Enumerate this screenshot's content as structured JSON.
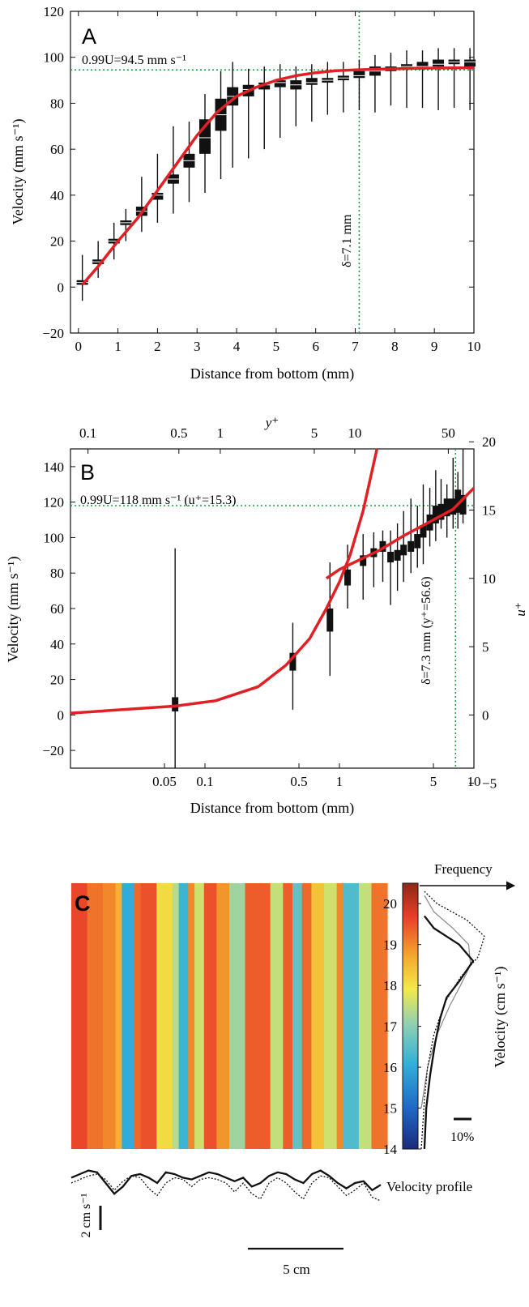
{
  "chart_data": [
    {
      "id": "A",
      "type": "line",
      "panel_label": "A",
      "xlabel": "Distance from bottom (mm)",
      "ylabel": "Velocity (mm s⁻¹)",
      "xlim": [
        -0.2,
        10
      ],
      "ylim": [
        -20,
        120
      ],
      "xticks": [
        0,
        1,
        2,
        3,
        4,
        5,
        6,
        7,
        8,
        9,
        10
      ],
      "yticks": [
        -20,
        0,
        20,
        40,
        60,
        80,
        100,
        120
      ],
      "annotations": {
        "u99_label": "0.99U=94.5 mm s⁻¹",
        "u99_value": 94.5,
        "delta_label": "δ=7.1 mm",
        "delta_value": 7.1
      },
      "fit_curve": {
        "x": [
          0.1,
          0.5,
          1,
          1.5,
          2,
          2.5,
          3,
          3.5,
          4,
          4.5,
          5,
          5.5,
          6,
          6.5,
          7,
          7.5,
          8,
          8.5,
          9,
          9.5,
          10
        ],
        "y": [
          1,
          9,
          20,
          30,
          42,
          54,
          66,
          76,
          83,
          87,
          90,
          92,
          93.3,
          94.2,
          94.5,
          94.8,
          95,
          95.2,
          95.3,
          95.4,
          95.5
        ]
      },
      "boxes": {
        "x": [
          0.1,
          0.5,
          0.9,
          1.2,
          1.6,
          2.0,
          2.4,
          2.8,
          3.2,
          3.6,
          3.9,
          4.3,
          4.7,
          5.1,
          5.5,
          5.9,
          6.3,
          6.7,
          7.1,
          7.5,
          7.9,
          8.3,
          8.7,
          9.1,
          9.5,
          9.9
        ],
        "median": [
          2,
          11,
          20,
          28,
          33,
          40,
          47,
          55,
          65,
          75,
          83,
          86,
          88,
          89,
          88,
          89,
          90,
          91,
          92,
          94,
          95,
          96,
          96,
          97,
          98,
          98
        ],
        "q1": [
          1,
          10,
          19,
          27,
          31,
          38,
          45,
          52,
          58,
          68,
          79,
          83,
          86,
          87,
          86,
          88,
          89,
          90,
          91,
          92,
          94,
          95,
          95,
          96,
          97,
          96
        ],
        "q3": [
          3,
          12,
          21,
          29,
          35,
          41,
          49,
          58,
          73,
          82,
          87,
          88,
          89,
          90,
          90,
          91,
          91,
          92,
          94,
          96,
          96,
          97,
          98,
          99,
          99,
          99
        ],
        "lo": [
          -6,
          4,
          12,
          20,
          24,
          28,
          32,
          37,
          41,
          47,
          52,
          56,
          60,
          65,
          70,
          72,
          75,
          76,
          77,
          76,
          79,
          78,
          78,
          77,
          78,
          77
        ],
        "hi": [
          14,
          20,
          28,
          34,
          48,
          58,
          70,
          72,
          84,
          94,
          98,
          95,
          96,
          97,
          96,
          97,
          98,
          98,
          99,
          101,
          102,
          103,
          103,
          104,
          104,
          104
        ]
      }
    },
    {
      "id": "B",
      "type": "line",
      "panel_label": "B",
      "xlabel": "Distance from bottom (mm)",
      "ylabel": "Velocity (mm s⁻¹)",
      "top_axis_label": "y⁺",
      "right_axis_label": "u⁺",
      "xscale": "log",
      "xlim": [
        0.01,
        10
      ],
      "ylim": [
        -30,
        150
      ],
      "xticks": [
        0.05,
        0.1,
        0.5,
        1,
        5,
        10
      ],
      "xtick_labels": [
        "0.05",
        "0.1",
        "0.5",
        "1",
        "5",
        "10"
      ],
      "yticks": [
        -20,
        0,
        20,
        40,
        60,
        80,
        100,
        120,
        140
      ],
      "top_ticks": [
        0.1,
        0.5,
        1,
        5,
        10,
        50
      ],
      "top_tick_labels": [
        "0.1",
        "0.5",
        "1",
        "5",
        "10",
        "50"
      ],
      "right_ticks": [
        -5,
        0,
        5,
        10,
        15,
        20
      ],
      "annotations": {
        "u99_label": "0.99U=118 mm s⁻¹ (u⁺=15.3)",
        "u99_value": 118,
        "delta_label": "δ=7.3 mm (y⁺=56.6)",
        "delta_value": 7.3
      },
      "viscous_curve": {
        "x": [
          0.01,
          0.06,
          0.12,
          0.25,
          0.4,
          0.6,
          0.8,
          1.0,
          1.2,
          1.5,
          1.9
        ],
        "y": [
          1,
          5,
          8,
          16,
          28,
          43,
          60,
          75,
          90,
          115,
          150
        ]
      },
      "log_curve": {
        "x": [
          0.8,
          1,
          2,
          3,
          5,
          7,
          10
        ],
        "y": [
          77,
          82,
          93,
          101,
          110,
          116,
          128
        ]
      },
      "boxes": {
        "x": [
          0.06,
          0.45,
          0.85,
          1.15,
          1.5,
          1.8,
          2.1,
          2.4,
          2.7,
          3.0,
          3.4,
          3.8,
          4.2,
          4.7,
          5.2,
          5.7,
          6.3,
          7.0,
          7.6,
          8.3
        ],
        "median": [
          6,
          30,
          54,
          78,
          87,
          92,
          95,
          89,
          90,
          93,
          95,
          98,
          103,
          108,
          112,
          113,
          115,
          116,
          119,
          118
        ],
        "q1": [
          2,
          25,
          47,
          73,
          84,
          89,
          92,
          86,
          87,
          90,
          92,
          94,
          100,
          104,
          108,
          110,
          112,
          113,
          114,
          113
        ],
        "q3": [
          10,
          35,
          60,
          82,
          90,
          94,
          98,
          92,
          93,
          96,
          98,
          102,
          107,
          113,
          118,
          119,
          122,
          122,
          127,
          124
        ],
        "lo": [
          -30,
          3,
          22,
          60,
          65,
          72,
          75,
          62,
          70,
          75,
          80,
          83,
          85,
          95,
          98,
          105,
          100,
          105,
          105,
          108
        ],
        "hi": [
          94,
          52,
          86,
          96,
          102,
          103,
          104,
          104,
          108,
          115,
          122,
          118,
          130,
          128,
          138,
          133,
          130,
          145,
          137,
          150
        ]
      }
    },
    {
      "id": "C",
      "type": "heatmap",
      "panel_label": "C",
      "colorbar_label": "Velocity (cm s⁻¹)",
      "colorbar_ticks": [
        14,
        15,
        16,
        17,
        18,
        19,
        20
      ],
      "frequency_label": "Frequency",
      "freq_scale_label": "10%",
      "profile_label": "Velocity profile",
      "y_scale_label": "2 cm s⁻¹",
      "x_scale_label": "5 cm",
      "columns": {
        "x": [
          0.0,
          0.05,
          0.1,
          0.14,
          0.16,
          0.2,
          0.22,
          0.27,
          0.32,
          0.34,
          0.37,
          0.39,
          0.42,
          0.46,
          0.5,
          0.55,
          0.6,
          0.63,
          0.67,
          0.7,
          0.73,
          0.76,
          0.8,
          0.84,
          0.86,
          0.91,
          0.95,
          1.0
        ],
        "value": [
          19.6,
          19.2,
          19.0,
          18.6,
          16.0,
          19.3,
          19.5,
          18.1,
          17.4,
          16.2,
          19.0,
          17.6,
          19.5,
          18.9,
          17.2,
          19.4,
          19.4,
          17.5,
          19.4,
          16.6,
          19.3,
          18.4,
          17.6,
          19.0,
          16.4,
          17.5,
          19.2,
          19.0
        ]
      },
      "profile_solid": [
        0.3,
        0.5,
        0.7,
        0.6,
        0.0,
        -0.6,
        -0.2,
        0.4,
        0.5,
        0.3,
        0.0,
        0.6,
        0.5,
        0.3,
        0.2,
        0.4,
        0.6,
        0.5,
        0.3,
        0.1,
        0.3,
        -0.2,
        0.0,
        0.4,
        0.6,
        0.5,
        0.2,
        0.0,
        0.5,
        0.7,
        0.4,
        0.0,
        -0.3,
        0.0,
        0.1,
        -0.4,
        -0.1
      ],
      "profile_dotted": [
        0.0,
        0.2,
        0.4,
        0.5,
        0.2,
        -0.4,
        0.1,
        0.4,
        0.3,
        -0.3,
        -0.7,
        0.0,
        0.3,
        0.2,
        -0.2,
        0.2,
        0.3,
        0.2,
        0.0,
        -0.5,
        0.0,
        -0.6,
        -0.9,
        0.0,
        0.3,
        0.0,
        -0.5,
        -0.9,
        0.0,
        0.4,
        0.3,
        -0.2,
        -0.7,
        -0.4,
        0.0,
        -0.8,
        -1.0
      ],
      "freq_solid": {
        "v": [
          14.0,
          15.0,
          15.8,
          16.6,
          17.2,
          17.7,
          18.1,
          18.6,
          19.0,
          19.4,
          19.7
        ],
        "f": [
          0.05,
          0.08,
          0.14,
          0.22,
          0.3,
          0.4,
          0.6,
          0.82,
          0.6,
          0.2,
          0.05
        ]
      },
      "freq_dotted": {
        "v": [
          14.0,
          15.2,
          16.0,
          16.8,
          17.6,
          18.2,
          18.7,
          19.2,
          19.6,
          20.0,
          20.3
        ],
        "f": [
          0.0,
          0.05,
          0.1,
          0.2,
          0.38,
          0.62,
          0.9,
          1.0,
          0.72,
          0.25,
          0.05
        ]
      },
      "freq_gray": {
        "v": [
          15.0,
          16.0,
          16.8,
          17.5,
          18.0,
          18.5,
          19.0,
          19.4,
          19.8,
          20.2
        ],
        "f": [
          0.0,
          0.1,
          0.25,
          0.45,
          0.62,
          0.78,
          0.75,
          0.5,
          0.2,
          0.05
        ]
      }
    }
  ]
}
